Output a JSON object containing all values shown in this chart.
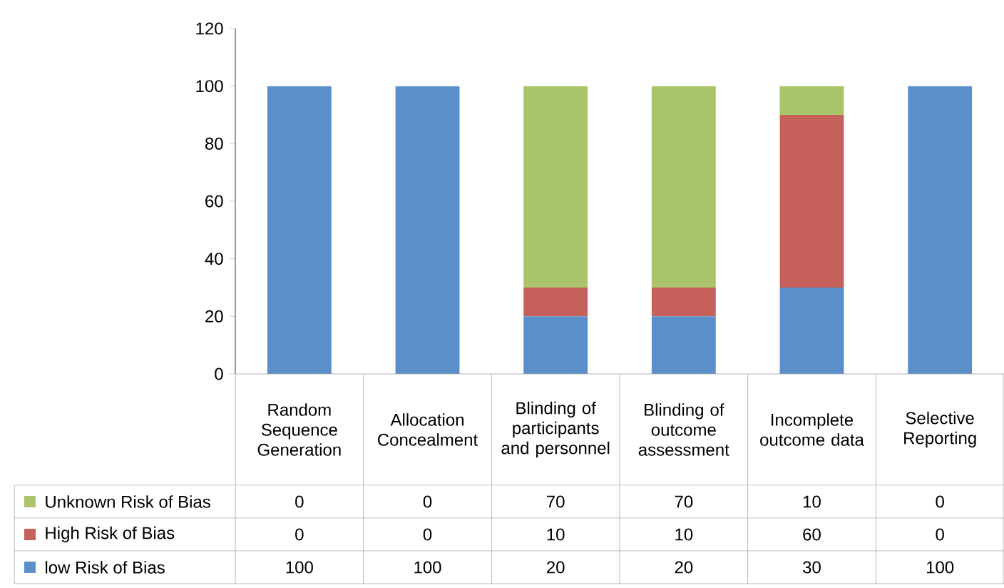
{
  "chart_data": {
    "type": "bar",
    "stacked": true,
    "data_labels": true,
    "legend": "bottom",
    "categories": [
      "Random Sequence Generation",
      "Allocation Concealment",
      "Blinding of participants and personnel",
      "Blinding of outcome assessment",
      "Incomplete outcome data",
      "Selective Reporting"
    ],
    "series": [
      {
        "name": "low Risk of Bias",
        "color": "#5b8fc9",
        "values": [
          100,
          100,
          20,
          20,
          30,
          100
        ]
      },
      {
        "name": "High Risk of Bias",
        "color": "#c6605a",
        "values": [
          0,
          0,
          10,
          10,
          60,
          0
        ]
      },
      {
        "name": "Unknown Risk of Bias",
        "color": "#a9c46b",
        "values": [
          0,
          0,
          70,
          70,
          10,
          0
        ]
      }
    ],
    "ylim": [
      0,
      120
    ],
    "yticks": [
      0,
      20,
      40,
      60,
      80,
      100,
      120
    ]
  }
}
